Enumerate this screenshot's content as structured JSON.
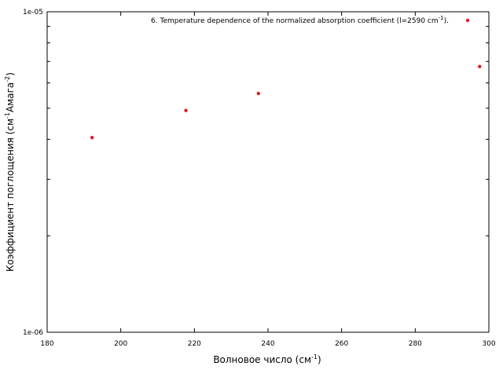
{
  "chart_data": {
    "type": "scatter",
    "xlabel": "Волновое число (см",
    "xlabel_sup": "-1",
    "xlabel_end": ")",
    "ylabel": "Коэффициент поглощения (см",
    "ylabel_sup1": "-1",
    "ylabel_mid": "Амага",
    "ylabel_sup2": "-2",
    "ylabel_end": ")",
    "xlim": [
      180,
      300
    ],
    "ylim": [
      1e-06,
      1e-05
    ],
    "yscale": "log",
    "x_ticks": [
      180,
      200,
      220,
      240,
      260,
      280,
      300
    ],
    "x_tick_labels": [
      "180",
      "200",
      "220",
      "240",
      "260",
      "280",
      "300"
    ],
    "y_tick_labels": [
      "1e-06",
      "1e-05"
    ],
    "grid": false,
    "legend_position": "top-right",
    "series": [
      {
        "name": "6. Temperature dependence of the normalized absorption coefficient (l=2590 cm-1).",
        "legend_prefix": "6. Temperature dependence of the normalized absorption coefficient (l=2590 cm",
        "legend_sup": "-1",
        "legend_suffix": ").",
        "color": "#e41a1c",
        "x": [
          192.2,
          217.7,
          237.4,
          297.5
        ],
        "y": [
          4.05e-06,
          4.92e-06,
          5.56e-06,
          6.75e-06
        ]
      }
    ]
  }
}
